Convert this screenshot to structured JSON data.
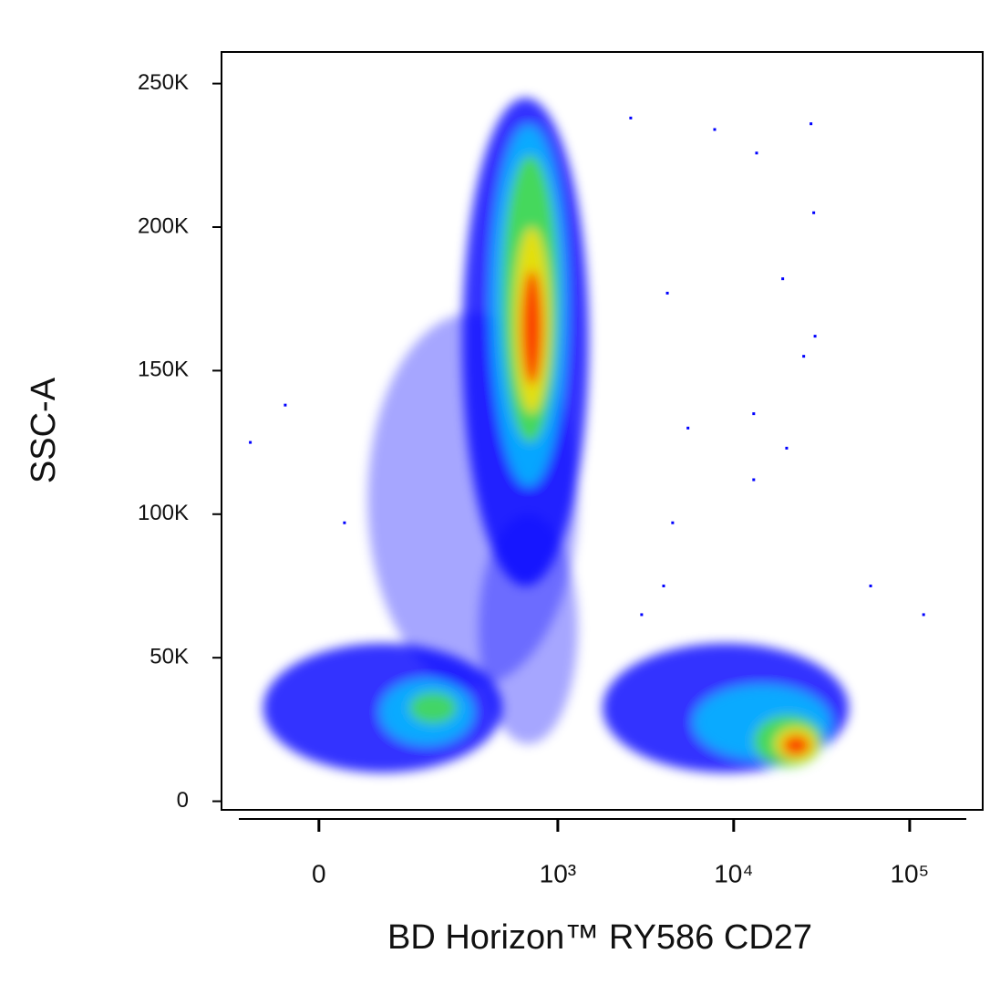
{
  "chart_data": {
    "type": "density",
    "x_label": "BD Horizon™ RY586 CD27",
    "y_label": "SSC-A",
    "x_scale": "arcsinh",
    "xlim": [
      -145,
      260000
    ],
    "ylim": [
      -3000,
      261000
    ],
    "xticks": [
      0,
      {
        "value": 1000,
        "label": "10³"
      },
      {
        "value": 10000,
        "label": "10⁴"
      },
      {
        "value": 100000,
        "label": "10⁵"
      }
    ],
    "yticks": [
      0,
      {
        "value": 50000,
        "label": "50K"
      },
      {
        "value": 100000,
        "label": "100K"
      },
      {
        "value": 150000,
        "label": "150K"
      },
      {
        "value": 200000,
        "label": "200K"
      },
      {
        "value": 250000,
        "label": "250K"
      }
    ],
    "layers": [
      {
        "color": "#0000ff",
        "opacity": 0.35,
        "x": [
          60,
          1300
        ],
        "y": [
          40000,
          170000
        ]
      },
      {
        "color": "#0000ff",
        "opacity": 0.35,
        "x": [
          350,
          1300
        ],
        "y": [
          20000,
          100000
        ]
      },
      {
        "color": "#0000ff",
        "opacity": 0.8,
        "x": [
          280,
          1500
        ],
        "y": [
          75000,
          245000
        ]
      },
      {
        "color": "#00c8ff",
        "opacity": 0.8,
        "x": [
          420,
          1100
        ],
        "y": [
          110000,
          235000
        ]
      },
      {
        "color": "#50e040",
        "opacity": 0.85,
        "x": [
          480,
          1000
        ],
        "y": [
          125000,
          225000
        ]
      },
      {
        "color": "#ffe000",
        "opacity": 0.85,
        "x": [
          560,
          900
        ],
        "y": [
          135000,
          200000
        ]
      },
      {
        "color": "#ff2000",
        "opacity": 0.85,
        "x": [
          620,
          820
        ],
        "y": [
          145000,
          185000
        ]
      },
      {
        "color": "#0000ff",
        "opacity": 0.8,
        "x": [
          -70,
          480
        ],
        "y": [
          10000,
          55000
        ]
      },
      {
        "color": "#00c8ff",
        "opacity": 0.8,
        "x": [
          80,
          320
        ],
        "y": [
          20000,
          42000
        ]
      },
      {
        "color": "#50e040",
        "opacity": 0.8,
        "x": [
          130,
          260
        ],
        "y": [
          27000,
          38000
        ]
      },
      {
        "color": "#0000ff",
        "opacity": 0.8,
        "x": [
          1800,
          45000
        ],
        "y": [
          10000,
          55000
        ]
      },
      {
        "color": "#00c8ff",
        "opacity": 0.8,
        "x": [
          6000,
          35000
        ],
        "y": [
          15000,
          40000
        ]
      },
      {
        "color": "#50e040",
        "opacity": 0.85,
        "x": [
          13000,
          32000
        ],
        "y": [
          12000,
          30000
        ]
      },
      {
        "color": "#ffe000",
        "opacity": 0.85,
        "x": [
          17000,
          30000
        ],
        "y": [
          14000,
          26000
        ]
      },
      {
        "color": "#ff2000",
        "opacity": 0.85,
        "x": [
          19000,
          27000
        ],
        "y": [
          16000,
          23000
        ]
      }
    ],
    "points": {
      "color": "#0000ff",
      "x": [
        13500,
        27500,
        7800,
        28500,
        19000,
        29000,
        25000,
        4200,
        20000,
        13000,
        5500,
        13000,
        4500,
        4000,
        3000,
        2600,
        -90,
        -40,
        30,
        120000,
        60000
      ],
      "y": [
        225800,
        236000,
        234000,
        205000,
        182000,
        162000,
        155000,
        177000,
        123000,
        135000,
        130000,
        112000,
        97000,
        75000,
        65000,
        238000,
        125000,
        138000,
        97000,
        65000,
        75000
      ]
    }
  }
}
